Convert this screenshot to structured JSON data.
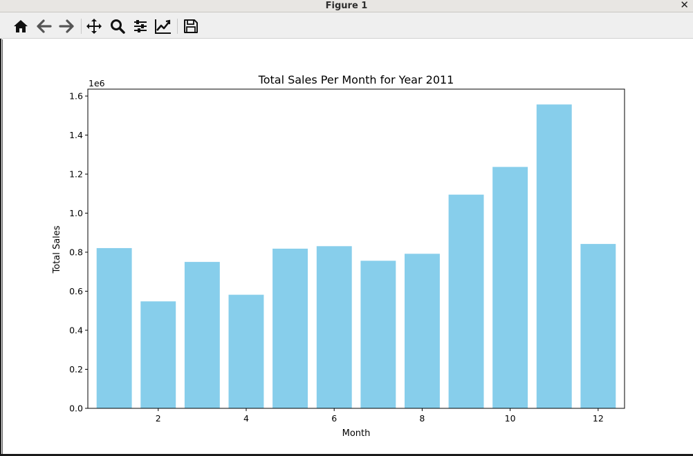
{
  "window": {
    "title": "Figure 1",
    "close_glyph": "✕"
  },
  "toolbar": {
    "buttons": [
      {
        "name": "home-icon",
        "tooltip": "Reset original view"
      },
      {
        "name": "back-arrow-icon",
        "tooltip": "Back to previous view"
      },
      {
        "name": "forward-arrow-icon",
        "tooltip": "Forward to next view"
      },
      {
        "name": "pan-move-icon",
        "tooltip": "Pan axes"
      },
      {
        "name": "zoom-magnifier-icon",
        "tooltip": "Zoom to rectangle"
      },
      {
        "name": "configure-subplots-icon",
        "tooltip": "Configure subplots"
      },
      {
        "name": "edit-axis-icon",
        "tooltip": "Edit axis"
      },
      {
        "name": "save-floppy-icon",
        "tooltip": "Save the figure"
      }
    ]
  },
  "colors": {
    "bar": "#87ceeb",
    "axis": "#000000",
    "text": "#000000"
  },
  "chart_data": {
    "type": "bar",
    "title": "Total Sales Per Month for Year 2011",
    "xlabel": "Month",
    "ylabel": "Total Sales",
    "y_offset_label": "1e6",
    "categories": [
      1,
      2,
      3,
      4,
      5,
      6,
      7,
      8,
      9,
      10,
      11,
      12
    ],
    "values": [
      0.821,
      0.548,
      0.75,
      0.582,
      0.818,
      0.831,
      0.756,
      0.792,
      1.095,
      1.237,
      1.557,
      0.842
    ],
    "value_units": "x 1e6",
    "xlim": [
      0.4,
      12.6
    ],
    "ylim": [
      0.0,
      1.6355
    ],
    "xticks": [
      2,
      4,
      6,
      8,
      10,
      12
    ],
    "xtick_labels": [
      "2",
      "4",
      "6",
      "8",
      "10",
      "12"
    ],
    "yticks": [
      0.0,
      0.2,
      0.4,
      0.6,
      0.8,
      1.0,
      1.2,
      1.4,
      1.6
    ],
    "ytick_labels": [
      "0.0",
      "0.2",
      "0.4",
      "0.6",
      "0.8",
      "1.0",
      "1.2",
      "1.4",
      "1.6"
    ],
    "bar_width": 0.8,
    "grid": false,
    "legend": "none"
  }
}
